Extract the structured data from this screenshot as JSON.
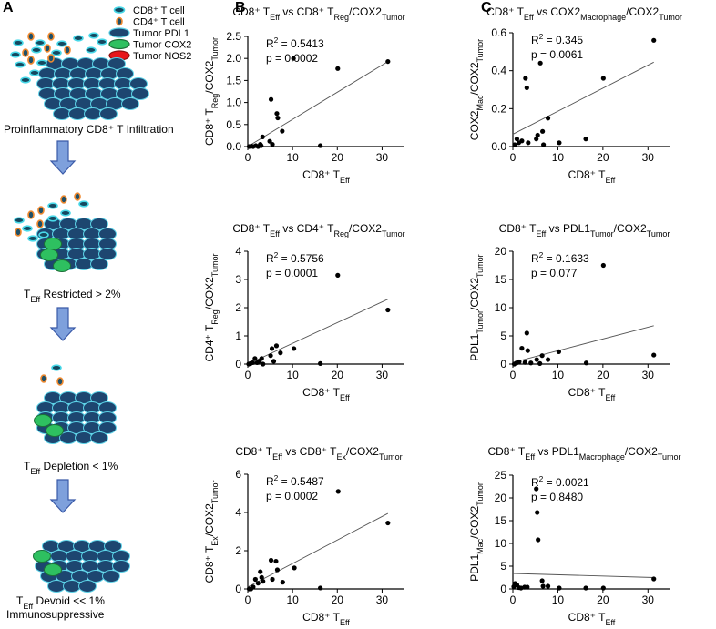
{
  "panels": {
    "a": "A",
    "b": "B",
    "c": "C"
  },
  "legend": [
    {
      "label": "CD8⁺ T cell",
      "kind": "oval",
      "fill": "#15485f",
      "stroke": "#48d8e8"
    },
    {
      "label": "CD4⁺ T cell",
      "kind": "dot",
      "fill": "#1f5068",
      "stroke": "#f08a30"
    },
    {
      "label": "Tumor PDL1",
      "kind": "ellipse",
      "fill": "#1d4670",
      "stroke": "#5bd1e6"
    },
    {
      "label": "Tumor COX2",
      "kind": "ellipse",
      "fill": "#2ec060",
      "stroke": "#1c7038"
    },
    {
      "label": "Tumor NOS2",
      "kind": "ellipse",
      "fill": "#e8151b",
      "stroke": "#901010"
    }
  ],
  "stages": [
    {
      "label": "Proinflammatory CD8⁺ T Infiltration"
    },
    {
      "label": "T",
      "sub": "Eff",
      "rest": " Restricted > 2%"
    },
    {
      "label": "T",
      "sub": "Eff",
      "rest": " Depletion < 1%"
    },
    {
      "label": "T",
      "sub": "Eff",
      "rest": " Devoid << 1%",
      "line2": "Immunosuppressive"
    }
  ],
  "colors": {
    "arrow_fill": "#7ea0dc",
    "arrow_stroke": "#3a5aa8",
    "cell_fill": "#1d4670",
    "cell_stroke": "#5bd1e6",
    "green": "#2ec060",
    "red": "#e8151b",
    "orange": "#f08a30"
  },
  "chart_data": [
    {
      "type": "scatter",
      "title": "CD8⁺ T_Eff vs CD8⁺ T_Reg/COX2_Tumor",
      "xlabel": "CD8⁺ T_Eff",
      "ylabel": "CD8⁺ T_Reg/COX2_Tumor",
      "xlim": [
        0,
        35
      ],
      "ylim": [
        0,
        2.5
      ],
      "xticks": [
        0,
        10,
        20,
        30
      ],
      "yticks": [
        0.0,
        0.5,
        1.0,
        1.5,
        2.0,
        2.5
      ],
      "ytick_labels": [
        "0.0",
        "0.5",
        "1.0",
        "1.5",
        "2.0",
        "2.5"
      ],
      "stats": [
        "R² = 0.5413",
        "p = 0.0002"
      ],
      "fit": [
        [
          0,
          0.0
        ],
        [
          31.3,
          1.93
        ]
      ],
      "points": [
        [
          0.3,
          0.0
        ],
        [
          0.8,
          0.01
        ],
        [
          1.2,
          0.0
        ],
        [
          1.8,
          0.02
        ],
        [
          2.3,
          0.0
        ],
        [
          2.8,
          0.05
        ],
        [
          3.3,
          0.22
        ],
        [
          3.0,
          0.02
        ],
        [
          4.9,
          0.12
        ],
        [
          5.2,
          1.07
        ],
        [
          5.5,
          0.05
        ],
        [
          6.5,
          0.75
        ],
        [
          6.7,
          0.65
        ],
        [
          7.7,
          0.35
        ],
        [
          10.2,
          2.0
        ],
        [
          16.2,
          0.02
        ],
        [
          20.1,
          1.77
        ],
        [
          31.3,
          1.93
        ]
      ]
    },
    {
      "type": "scatter",
      "title": "CD8⁺ T_Eff vs CD4⁺ T_Reg/COX2_Tumor",
      "xlabel": "CD8⁺ T_Eff",
      "ylabel": "CD4⁺ T_Reg/COX2_Tumor",
      "xlim": [
        0,
        35
      ],
      "ylim": [
        0,
        4
      ],
      "xticks": [
        0,
        10,
        20,
        30
      ],
      "yticks": [
        0,
        1,
        2,
        3,
        4
      ],
      "ytick_labels": [
        "0",
        "1",
        "2",
        "3",
        "4"
      ],
      "stats": [
        "R² = 0.5756",
        "p = 0.0001"
      ],
      "fit": [
        [
          0,
          0.0
        ],
        [
          31.3,
          2.3
        ]
      ],
      "points": [
        [
          0.2,
          0.0
        ],
        [
          0.6,
          0.02
        ],
        [
          1.1,
          0.05
        ],
        [
          1.6,
          0.2
        ],
        [
          2.1,
          0.05
        ],
        [
          2.6,
          0.1
        ],
        [
          3.1,
          0.2
        ],
        [
          3.4,
          0.0
        ],
        [
          5.1,
          0.3
        ],
        [
          5.4,
          0.55
        ],
        [
          5.8,
          0.1
        ],
        [
          6.4,
          0.65
        ],
        [
          7.3,
          0.4
        ],
        [
          10.3,
          0.55
        ],
        [
          16.2,
          0.02
        ],
        [
          20.1,
          3.15
        ],
        [
          31.3,
          1.92
        ]
      ]
    },
    {
      "type": "scatter",
      "title": "CD8⁺ T_Eff vs CD8⁺ T_Ex/COX2_Tumor",
      "xlabel": "CD8⁺ T_Eff",
      "ylabel": "CD8⁺ T_Ex/COX2_Tumor",
      "xlim": [
        0,
        35
      ],
      "ylim": [
        0,
        6
      ],
      "xticks": [
        0,
        10,
        20,
        30
      ],
      "yticks": [
        0,
        2,
        4,
        6
      ],
      "ytick_labels": [
        "0",
        "2",
        "4",
        "6"
      ],
      "stats": [
        "R² = 0.5487",
        "p = 0.0002"
      ],
      "fit": [
        [
          0,
          0.1
        ],
        [
          31.3,
          3.95
        ]
      ],
      "points": [
        [
          0.3,
          0.0
        ],
        [
          0.7,
          0.0
        ],
        [
          1.2,
          0.1
        ],
        [
          1.7,
          0.5
        ],
        [
          2.3,
          0.3
        ],
        [
          2.8,
          0.9
        ],
        [
          3.1,
          0.6
        ],
        [
          3.4,
          0.4
        ],
        [
          5.2,
          1.5
        ],
        [
          5.5,
          0.5
        ],
        [
          6.3,
          1.45
        ],
        [
          6.6,
          1.0
        ],
        [
          7.8,
          0.35
        ],
        [
          10.4,
          1.1
        ],
        [
          16.2,
          0.05
        ],
        [
          20.2,
          5.1
        ],
        [
          31.3,
          3.45
        ]
      ]
    },
    {
      "type": "scatter",
      "title": "CD8⁺ T_Eff vs COX2_Macrophage/COX2_Tumor",
      "xlabel": "CD8⁺ T_Eff",
      "ylabel": "COX2_Mac/COX2_Tumor",
      "xlim": [
        0,
        35
      ],
      "ylim": [
        0,
        0.6
      ],
      "xticks": [
        0,
        10,
        20,
        30
      ],
      "yticks": [
        0.0,
        0.2,
        0.4,
        0.6
      ],
      "ytick_labels": [
        "0.0",
        "0.2",
        "0.4",
        "0.6"
      ],
      "stats": [
        "R² = 0.345",
        "p = 0.0061"
      ],
      "fit": [
        [
          0,
          0.065
        ],
        [
          31.3,
          0.445
        ]
      ],
      "points": [
        [
          0.4,
          0.01
        ],
        [
          0.9,
          0.04
        ],
        [
          1.3,
          0.02
        ],
        [
          2.0,
          0.03
        ],
        [
          2.8,
          0.36
        ],
        [
          3.1,
          0.31
        ],
        [
          3.4,
          0.02
        ],
        [
          5.2,
          0.04
        ],
        [
          5.5,
          0.06
        ],
        [
          6.1,
          0.44
        ],
        [
          6.6,
          0.08
        ],
        [
          6.8,
          0.01
        ],
        [
          7.8,
          0.15
        ],
        [
          10.3,
          0.02
        ],
        [
          16.2,
          0.04
        ],
        [
          20.1,
          0.36
        ],
        [
          31.3,
          0.56
        ]
      ]
    },
    {
      "type": "scatter",
      "title": "CD8⁺ T_Eff vs PDL1_Tumor/COX2_Tumor",
      "xlabel": "CD8⁺ T_Eff",
      "ylabel": "PDL1_Tumor/COX2_Tumor",
      "xlim": [
        0,
        35
      ],
      "ylim": [
        0,
        20
      ],
      "xticks": [
        0,
        10,
        20,
        30
      ],
      "yticks": [
        0,
        5,
        10,
        15,
        20
      ],
      "ytick_labels": [
        "0",
        "5",
        "10",
        "15",
        "20"
      ],
      "stats": [
        "R² = 0.1633",
        "p = 0.077"
      ],
      "fit": [
        [
          0,
          0.3
        ],
        [
          31.3,
          6.8
        ]
      ],
      "points": [
        [
          0.3,
          0.0
        ],
        [
          0.8,
          0.2
        ],
        [
          1.4,
          0.4
        ],
        [
          2.0,
          2.8
        ],
        [
          2.7,
          0.3
        ],
        [
          3.1,
          5.5
        ],
        [
          3.3,
          2.4
        ],
        [
          4.0,
          0.2
        ],
        [
          5.3,
          0.8
        ],
        [
          6.0,
          0.1
        ],
        [
          6.5,
          1.5
        ],
        [
          7.8,
          0.8
        ],
        [
          10.2,
          2.2
        ],
        [
          16.3,
          0.2
        ],
        [
          20.1,
          17.5
        ],
        [
          31.3,
          1.6
        ]
      ]
    },
    {
      "type": "scatter",
      "title": "CD8⁺ T_Eff vs PDL1_Macrophage/COX2_Tumor",
      "xlabel": "CD8⁺ T_Eff",
      "ylabel": "PDL1_Mac/COX2_Tumor",
      "xlim": [
        0,
        35
      ],
      "ylim": [
        0,
        25
      ],
      "xticks": [
        0,
        10,
        20,
        30
      ],
      "yticks": [
        0,
        5,
        10,
        15,
        20,
        25
      ],
      "ytick_labels": [
        "0",
        "5",
        "10",
        "15",
        "20",
        "25"
      ],
      "stats": [
        "R² = 0.0021",
        "p = 0.8480"
      ],
      "fit": [
        [
          0,
          3.4
        ],
        [
          31.3,
          2.5
        ]
      ],
      "points": [
        [
          0.2,
          0.5
        ],
        [
          0.5,
          1.2
        ],
        [
          0.9,
          0.9
        ],
        [
          1.3,
          0.3
        ],
        [
          1.8,
          0.2
        ],
        [
          2.6,
          0.4
        ],
        [
          3.2,
          0.4
        ],
        [
          5.2,
          22.0
        ],
        [
          5.4,
          16.8
        ],
        [
          5.6,
          10.8
        ],
        [
          6.5,
          1.8
        ],
        [
          6.7,
          0.6
        ],
        [
          7.8,
          0.6
        ],
        [
          10.3,
          0.2
        ],
        [
          16.2,
          0.2
        ],
        [
          20.1,
          0.2
        ],
        [
          31.3,
          2.2
        ]
      ]
    }
  ]
}
